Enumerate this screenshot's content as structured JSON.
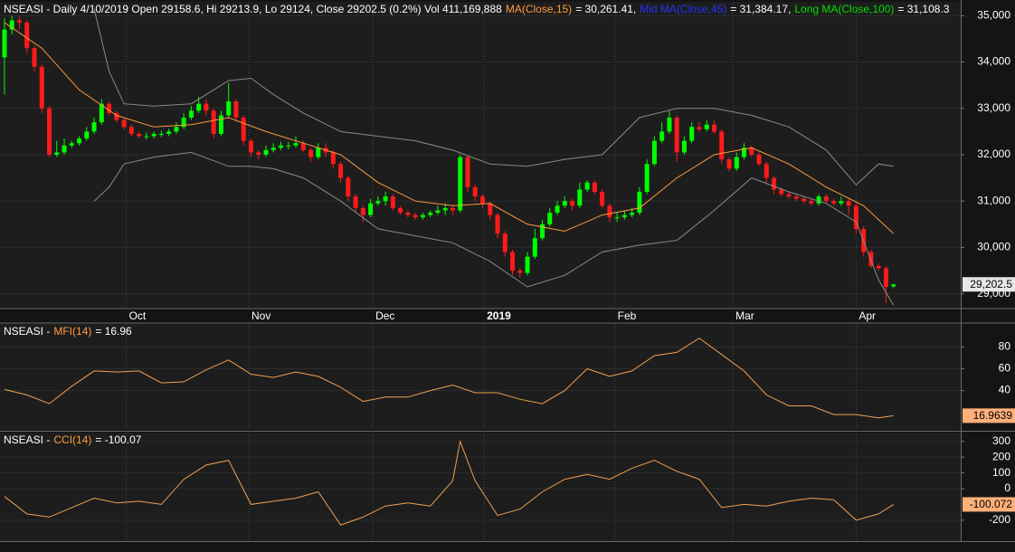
{
  "chart_data": [
    {
      "type": "candlestick",
      "header": [
        {
          "text": "NSEASI - Daily 4/10/2019 Open 29158.6, Hi 29213.9, Lo 29124, Close 29202.5 (0.2%) Vol 411,169,888",
          "color": "#ffffff"
        },
        {
          "text": "MA(Close,15)",
          "color": "#ff9a3c"
        },
        {
          "text": "= 30,261.41,",
          "color": "#ffffff"
        },
        {
          "text": "Mid MA(Close,45)",
          "color": "#2233ff"
        },
        {
          "text": "= 31,384.17,",
          "color": "#ffffff"
        },
        {
          "text": "Long MA(Close,100)",
          "color": "#00e000"
        },
        {
          "text": "= 31,108.3",
          "color": "#ffffff"
        }
      ],
      "up_color": "#00ff00",
      "down_color": "#ff1a1a",
      "open": [
        34100,
        34700,
        34900,
        34850,
        34300,
        33900,
        33000,
        32000,
        32050,
        32200,
        32250,
        32350,
        32500,
        32700,
        33100,
        32900,
        32750,
        32600,
        32450,
        32400,
        32400,
        32450,
        32450,
        32500,
        32600,
        32800,
        32950,
        33100,
        32950,
        32450,
        32850,
        33150,
        32800,
        32300,
        32050,
        32000,
        32100,
        32150,
        32200,
        32200,
        32250,
        32100,
        31950,
        32150,
        32050,
        31800,
        31500,
        31100,
        30850,
        30700,
        30950,
        31000,
        31100,
        30850,
        30750,
        30700,
        30650,
        30700,
        30750,
        30800,
        30850,
        30800,
        31950,
        31300,
        31100,
        30950,
        30700,
        30300,
        29900,
        29500,
        29450,
        29800,
        30200,
        30500,
        30750,
        30900,
        31000,
        30900,
        31250,
        31400,
        31200,
        30900,
        30650,
        30650,
        30700,
        30750,
        31200,
        31800,
        32300,
        32500,
        32800,
        32050,
        32300,
        32600,
        32550,
        32650,
        32500,
        31900,
        31700,
        31950,
        32150,
        32000,
        31800,
        31500,
        31250,
        31150,
        31100,
        31050,
        31000,
        30950,
        31100,
        31000,
        30950,
        31000,
        30900,
        30400,
        29900,
        29600,
        29550,
        29158.6
      ],
      "high": [
        34950,
        35000,
        34980,
        34900,
        34350,
        33950,
        33050,
        32300,
        32350,
        32300,
        32400,
        32600,
        32800,
        33200,
        33150,
        32950,
        32800,
        32650,
        32500,
        32480,
        32500,
        32520,
        32560,
        32700,
        32900,
        33050,
        33250,
        33200,
        33000,
        32950,
        33550,
        33200,
        32850,
        32350,
        32100,
        32200,
        32250,
        32280,
        32280,
        32400,
        32300,
        32150,
        32250,
        32250,
        32100,
        31850,
        31550,
        31150,
        30900,
        31050,
        31100,
        31200,
        31150,
        30900,
        30800,
        30750,
        30750,
        30800,
        30900,
        30950,
        30900,
        32000,
        31950,
        31350,
        31150,
        31000,
        30750,
        30350,
        29950,
        29550,
        29900,
        30400,
        30600,
        30850,
        31000,
        31100,
        31050,
        31400,
        31450,
        31450,
        31250,
        30950,
        30750,
        30800,
        30850,
        31300,
        31900,
        32400,
        32700,
        32950,
        32850,
        32400,
        32700,
        32700,
        32750,
        32750,
        32550,
        31950,
        32050,
        32250,
        32200,
        32050,
        31850,
        31550,
        31300,
        31200,
        31150,
        31100,
        31050,
        31150,
        31150,
        31050,
        31100,
        31050,
        30950,
        30450,
        29950,
        29650,
        29600,
        29213.9
      ],
      "low": [
        33300,
        34600,
        34700,
        34200,
        33800,
        32900,
        31950,
        31950,
        32000,
        32150,
        32200,
        32300,
        32450,
        32650,
        32850,
        32700,
        32550,
        32400,
        32350,
        32330,
        32350,
        32380,
        32400,
        32450,
        32550,
        32750,
        32900,
        32850,
        32350,
        32400,
        32800,
        32700,
        32200,
        31950,
        31900,
        31950,
        32050,
        32100,
        32120,
        32150,
        32050,
        31850,
        31900,
        31950,
        31700,
        31400,
        31000,
        30750,
        30550,
        30650,
        30900,
        30900,
        30800,
        30700,
        30650,
        30600,
        30600,
        30650,
        30700,
        30700,
        30700,
        30750,
        31200,
        31000,
        30850,
        30600,
        30200,
        29800,
        29400,
        29350,
        29400,
        29750,
        30150,
        30450,
        30700,
        30850,
        30800,
        30850,
        31200,
        31150,
        30850,
        30550,
        30550,
        30600,
        30650,
        30700,
        31150,
        31750,
        32250,
        32450,
        31850,
        32000,
        32250,
        32500,
        32500,
        32450,
        31800,
        31650,
        31650,
        31900,
        31950,
        31750,
        31400,
        31150,
        31100,
        31050,
        31000,
        30950,
        30900,
        30900,
        30950,
        30900,
        30900,
        30700,
        30300,
        29800,
        29550,
        29500,
        28800,
        29124
      ],
      "close": [
        34700,
        34900,
        34850,
        34300,
        33900,
        33000,
        32000,
        32050,
        32200,
        32250,
        32350,
        32500,
        32700,
        33100,
        32900,
        32750,
        32600,
        32450,
        32400,
        32400,
        32450,
        32450,
        32500,
        32600,
        32800,
        32950,
        33100,
        32950,
        32450,
        32850,
        33150,
        32800,
        32300,
        32050,
        32000,
        32100,
        32150,
        32200,
        32200,
        32250,
        32100,
        31950,
        32150,
        32050,
        31800,
        31500,
        31100,
        30850,
        30700,
        30950,
        31000,
        31100,
        30850,
        30750,
        30700,
        30650,
        30700,
        30750,
        30800,
        30850,
        30800,
        31950,
        31300,
        31100,
        30950,
        30700,
        30300,
        29900,
        29500,
        29450,
        29800,
        30200,
        30500,
        30750,
        30900,
        31000,
        30900,
        31250,
        31400,
        31200,
        30900,
        30650,
        30650,
        30700,
        30750,
        31200,
        31800,
        32300,
        32500,
        32800,
        32050,
        32300,
        32600,
        32550,
        32650,
        32500,
        31900,
        31700,
        31950,
        32150,
        32000,
        31800,
        31500,
        31250,
        31150,
        31100,
        31050,
        31000,
        30950,
        31100,
        31000,
        30950,
        31000,
        30900,
        30400,
        29900,
        29600,
        29550,
        29150,
        29202.5
      ],
      "overlays": [
        {
          "color": "#ff9a3c",
          "x": [
            0,
            5,
            10,
            15,
            20,
            25,
            30,
            35,
            40,
            45,
            50,
            55,
            60,
            65,
            70,
            75,
            80,
            85,
            90,
            95,
            100,
            105,
            110,
            115,
            119
          ],
          "values": [
            34850,
            34300,
            33400,
            32850,
            32600,
            32650,
            32800,
            32500,
            32250,
            32000,
            31400,
            31000,
            30900,
            30950,
            30500,
            30350,
            30700,
            30850,
            31500,
            32000,
            32150,
            31800,
            31300,
            30900,
            30300
          ]
        },
        {
          "color": "#8a8a8a",
          "x": [
            12,
            14,
            16,
            20,
            25,
            30,
            33,
            36,
            40,
            45,
            50,
            55,
            60,
            65,
            70,
            75,
            80,
            85,
            90,
            95,
            100,
            105,
            110,
            114,
            117,
            119
          ],
          "values": [
            35150,
            33800,
            33100,
            33050,
            33100,
            33600,
            33650,
            33300,
            32900,
            32500,
            32400,
            32300,
            32100,
            31800,
            31750,
            31900,
            32000,
            32800,
            33000,
            33000,
            32850,
            32600,
            32100,
            31350,
            31800,
            31750
          ]
        },
        {
          "color": "#8a8a8a",
          "x": [
            12,
            14,
            16,
            20,
            25,
            30,
            33,
            36,
            40,
            45,
            50,
            55,
            60,
            65,
            70,
            75,
            80,
            85,
            90,
            95,
            100,
            105,
            110,
            114,
            117,
            119
          ],
          "values": [
            31000,
            31300,
            31800,
            31950,
            32050,
            31750,
            31750,
            31700,
            31500,
            31000,
            30400,
            30250,
            30100,
            29700,
            29150,
            29400,
            29900,
            30050,
            30150,
            30800,
            31500,
            31200,
            30950,
            30550,
            29300,
            28750
          ]
        }
      ],
      "last_label": "29,202.5",
      "xlim": [
        -0.6,
        128
      ],
      "xticks": [
        {
          "value": 16.3,
          "label": "Oct"
        },
        {
          "value": 32.7,
          "label": "Nov"
        },
        {
          "value": 49.3,
          "label": "Dec"
        },
        {
          "value": 64.2,
          "label": "2019",
          "bold": true
        },
        {
          "value": 81.7,
          "label": "Feb"
        },
        {
          "value": 97.5,
          "label": "Mar"
        },
        {
          "value": 114,
          "label": "Apr"
        }
      ],
      "ylim": [
        28700,
        35300
      ],
      "yticks": [
        {
          "value": 29000,
          "label": "29,000"
        },
        {
          "value": 30000,
          "label": "30,000"
        },
        {
          "value": 31000,
          "label": "31,000"
        },
        {
          "value": 32000,
          "label": "32,000"
        },
        {
          "value": 33000,
          "label": "33,000"
        },
        {
          "value": 34000,
          "label": "34,000"
        },
        {
          "value": 35000,
          "label": "35,000"
        }
      ]
    },
    {
      "type": "line",
      "header": [
        {
          "text": "NSEASI -",
          "color": "#ffffff"
        },
        {
          "text": "MFI(14)",
          "color": "#ff9a3c"
        },
        {
          "text": "= 16.96",
          "color": "#ffffff"
        }
      ],
      "x": [
        0,
        3,
        6,
        9,
        12,
        15,
        18,
        21,
        24,
        27,
        30,
        33,
        36,
        39,
        42,
        45,
        48,
        51,
        54,
        57,
        60,
        63,
        66,
        69,
        72,
        75,
        78,
        81,
        84,
        87,
        90,
        93,
        96,
        99,
        102,
        105,
        108,
        111,
        114,
        117,
        119
      ],
      "series": [
        {
          "color": "#f0a050",
          "values": [
            41,
            36,
            28,
            44,
            58,
            57,
            58,
            47,
            48,
            59,
            68,
            55,
            52,
            57,
            53,
            43,
            30,
            34,
            34,
            40,
            45,
            38,
            38,
            32,
            28,
            40,
            60,
            53,
            58,
            72,
            75,
            88,
            73,
            58,
            36,
            26,
            26,
            18,
            18,
            15,
            16.9639
          ]
        }
      ],
      "xlim": [
        -0.6,
        128
      ],
      "ylim": [
        4,
        101
      ],
      "yticks": [
        40,
        60,
        80
      ]
    },
    {
      "type": "line",
      "header": [
        {
          "text": "NSEASI -",
          "color": "#ffffff"
        },
        {
          "text": "CCI(14)",
          "color": "#ff9a3c"
        },
        {
          "text": "= -100.07",
          "color": "#ffffff"
        }
      ],
      "x": [
        0,
        3,
        6,
        9,
        12,
        15,
        18,
        21,
        24,
        27,
        30,
        33,
        36,
        39,
        42,
        45,
        48,
        51,
        54,
        57,
        60,
        61,
        63,
        66,
        69,
        72,
        75,
        78,
        81,
        84,
        87,
        90,
        93,
        96,
        99,
        102,
        105,
        108,
        111,
        114,
        117,
        119
      ],
      "series": [
        {
          "color": "#f0a050",
          "values": [
            -50,
            -160,
            -180,
            -120,
            -60,
            -90,
            -80,
            -100,
            60,
            150,
            180,
            -100,
            -80,
            -60,
            -20,
            -230,
            -180,
            -110,
            -90,
            -110,
            50,
            300,
            50,
            -170,
            -130,
            -20,
            60,
            90,
            60,
            130,
            180,
            110,
            60,
            -120,
            -100,
            -110,
            -80,
            -60,
            -70,
            -200,
            -160,
            -100.072
          ]
        }
      ],
      "xlim": [
        -0.6,
        128
      ],
      "ylim": [
        -333,
        356
      ],
      "yticks": [
        -200,
        0,
        100,
        200,
        300
      ]
    }
  ]
}
